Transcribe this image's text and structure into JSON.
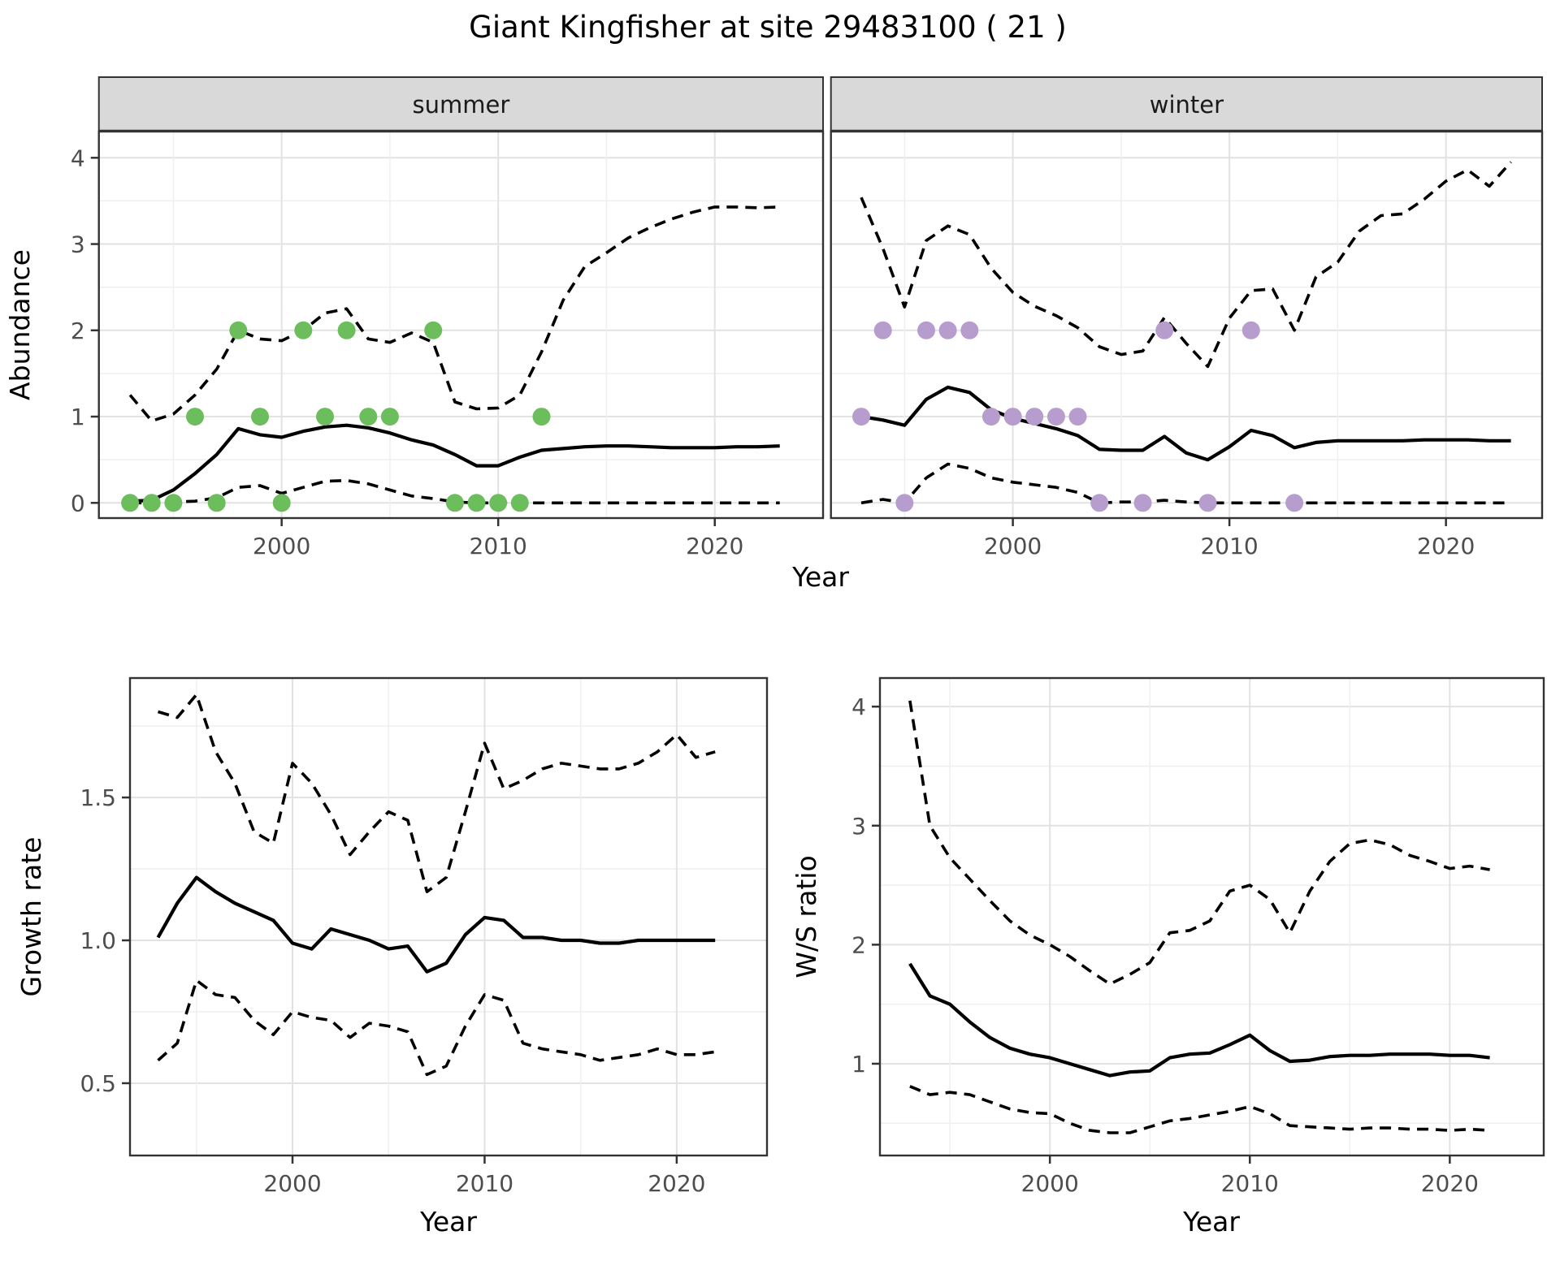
{
  "title": "Giant Kingfisher at site 29483100 ( 21 )",
  "theme": {
    "summer_dot_color": "#6cbe5d",
    "winter_dot_color": "#b79dce",
    "line_color": "#000000",
    "grid_major_color": "#e2e2e2",
    "grid_minor_color": "#efefef",
    "strip_bg_color": "#d9d9d9",
    "panel_border_color": "#333333",
    "tick_label_color": "#4d4d4d"
  },
  "chart_data": [
    {
      "id": "abundance-summer",
      "type": "line",
      "facet_label": "summer",
      "xlabel": "Year",
      "ylabel": "Abundance",
      "x_ticks": [
        2000,
        2010,
        2020
      ],
      "y_ticks": [
        0,
        1,
        2,
        3,
        4
      ],
      "xlim": [
        1991.56,
        2025.0
      ],
      "ylim": [
        -0.176,
        4.304
      ],
      "grid": true,
      "legend": "none",
      "x": [
        1993,
        1994,
        1995,
        1996,
        1997,
        1998,
        1999,
        2000,
        2001,
        2002,
        2003,
        2004,
        2005,
        2006,
        2007,
        2008,
        2009,
        2010,
        2011,
        2012,
        2013,
        2014,
        2015,
        2016,
        2017,
        2018,
        2019,
        2020,
        2021,
        2022,
        2023
      ],
      "series": [
        {
          "name": "modelled_mean",
          "style": "solid",
          "values": [
            0.02,
            0.03,
            0.15,
            0.34,
            0.56,
            0.86,
            0.79,
            0.76,
            0.83,
            0.88,
            0.9,
            0.87,
            0.81,
            0.73,
            0.67,
            0.56,
            0.43,
            0.43,
            0.53,
            0.61,
            0.63,
            0.65,
            0.66,
            0.66,
            0.65,
            0.64,
            0.64,
            0.64,
            0.65,
            0.65,
            0.66
          ]
        },
        {
          "name": "upper_ci",
          "style": "dashed",
          "values": [
            1.25,
            0.95,
            1.03,
            1.25,
            1.55,
            2.0,
            1.9,
            1.88,
            2.0,
            2.2,
            2.25,
            1.9,
            1.86,
            1.97,
            1.86,
            1.17,
            1.09,
            1.1,
            1.25,
            1.75,
            2.35,
            2.74,
            2.9,
            3.07,
            3.19,
            3.29,
            3.37,
            3.43,
            3.43,
            3.42,
            3.43
          ]
        },
        {
          "name": "lower_ci",
          "style": "dashed",
          "values": [
            0.0,
            0.0,
            0.01,
            0.02,
            0.06,
            0.18,
            0.2,
            0.11,
            0.18,
            0.25,
            0.26,
            0.22,
            0.15,
            0.08,
            0.05,
            0.01,
            0.0,
            0.0,
            0.0,
            0.0,
            0.0,
            0.0,
            0.0,
            0.0,
            0.0,
            0.0,
            0.0,
            0.0,
            0.0,
            0.0,
            0.0
          ]
        }
      ],
      "points": {
        "name": "observed_counts",
        "color": "#6cbe5d",
        "data": [
          [
            1993,
            0
          ],
          [
            1994,
            0
          ],
          [
            1995,
            0
          ],
          [
            1996,
            1
          ],
          [
            1997,
            0
          ],
          [
            1998,
            2
          ],
          [
            1999,
            1
          ],
          [
            2000,
            0
          ],
          [
            2001,
            2
          ],
          [
            2002,
            1
          ],
          [
            2003,
            2
          ],
          [
            2004,
            1
          ],
          [
            2005,
            1
          ],
          [
            2007,
            2
          ],
          [
            2008,
            0
          ],
          [
            2009,
            0
          ],
          [
            2010,
            0
          ],
          [
            2011,
            0
          ],
          [
            2012,
            1
          ]
        ]
      }
    },
    {
      "id": "abundance-winter",
      "type": "line",
      "facet_label": "winter",
      "xlabel": "Year",
      "ylabel": "Abundance",
      "x_ticks": [
        2000,
        2010,
        2020
      ],
      "y_ticks": [
        0,
        1,
        2,
        3,
        4
      ],
      "xlim": [
        1991.6,
        2024.44
      ],
      "ylim": [
        -0.176,
        4.304
      ],
      "grid": true,
      "legend": "none",
      "x": [
        1993,
        1994,
        1995,
        1996,
        1997,
        1998,
        1999,
        2000,
        2001,
        2002,
        2003,
        2004,
        2005,
        2006,
        2007,
        2008,
        2009,
        2010,
        2011,
        2012,
        2013,
        2014,
        2015,
        2016,
        2017,
        2018,
        2019,
        2020,
        2021,
        2022,
        2023
      ],
      "series": [
        {
          "name": "modelled_mean",
          "style": "solid",
          "values": [
            1.0,
            0.96,
            0.9,
            1.2,
            1.34,
            1.28,
            1.08,
            0.98,
            0.92,
            0.86,
            0.78,
            0.62,
            0.61,
            0.61,
            0.77,
            0.58,
            0.5,
            0.65,
            0.84,
            0.78,
            0.64,
            0.7,
            0.72,
            0.72,
            0.72,
            0.72,
            0.73,
            0.73,
            0.73,
            0.72,
            0.72
          ]
        },
        {
          "name": "upper_ci",
          "style": "dashed",
          "values": [
            3.54,
            2.95,
            2.27,
            3.04,
            3.21,
            3.11,
            2.72,
            2.44,
            2.28,
            2.17,
            2.03,
            1.81,
            1.72,
            1.76,
            2.15,
            1.85,
            1.58,
            2.14,
            2.46,
            2.48,
            2.0,
            2.62,
            2.79,
            3.15,
            3.33,
            3.35,
            3.52,
            3.73,
            3.86,
            3.67,
            3.95
          ]
        },
        {
          "name": "lower_ci",
          "style": "dashed",
          "values": [
            0.0,
            0.04,
            0.0,
            0.29,
            0.45,
            0.4,
            0.29,
            0.24,
            0.21,
            0.18,
            0.12,
            0.0,
            0.01,
            0.01,
            0.03,
            0.01,
            0.0,
            0.0,
            0.0,
            0.0,
            0.0,
            0.0,
            0.0,
            0.0,
            0.0,
            0.0,
            0.0,
            0.0,
            0.0,
            0.0,
            0.0
          ]
        }
      ],
      "points": {
        "name": "observed_counts",
        "color": "#b79dce",
        "data": [
          [
            1993,
            1
          ],
          [
            1994,
            2
          ],
          [
            1995,
            0
          ],
          [
            1996,
            2
          ],
          [
            1997,
            2
          ],
          [
            1998,
            2
          ],
          [
            1999,
            1
          ],
          [
            2000,
            1
          ],
          [
            2001,
            1
          ],
          [
            2002,
            1
          ],
          [
            2003,
            1
          ],
          [
            2004,
            0
          ],
          [
            2006,
            0
          ],
          [
            2007,
            2
          ],
          [
            2009,
            0
          ],
          [
            2011,
            2
          ],
          [
            2013,
            0
          ]
        ]
      }
    },
    {
      "id": "growth-rate",
      "type": "line",
      "facet_label": null,
      "xlabel": "Year",
      "ylabel": "Growth rate",
      "x_ticks": [
        2000,
        2010,
        2020
      ],
      "y_ticks": [
        0.5,
        1.0,
        1.5
      ],
      "xlim": [
        1991.54,
        2024.7
      ],
      "ylim": [
        0.247,
        1.918
      ],
      "grid": true,
      "legend": "none",
      "x": [
        1993,
        1994,
        1995,
        1996,
        1997,
        1998,
        1999,
        2000,
        2001,
        2002,
        2003,
        2004,
        2005,
        2006,
        2007,
        2008,
        2009,
        2010,
        2011,
        2012,
        2013,
        2014,
        2015,
        2016,
        2017,
        2018,
        2019,
        2020,
        2021,
        2022
      ],
      "series": [
        {
          "name": "modelled_mean",
          "style": "solid",
          "values": [
            1.01,
            1.13,
            1.22,
            1.17,
            1.13,
            1.1,
            1.07,
            0.99,
            0.97,
            1.04,
            1.02,
            1.0,
            0.97,
            0.98,
            0.89,
            0.92,
            1.02,
            1.08,
            1.07,
            1.01,
            1.01,
            1.0,
            1.0,
            0.99,
            0.99,
            1.0,
            1.0,
            1.0,
            1.0,
            1.0
          ]
        },
        {
          "name": "upper_ci",
          "style": "dashed",
          "values": [
            1.8,
            1.78,
            1.86,
            1.66,
            1.55,
            1.38,
            1.34,
            1.62,
            1.55,
            1.44,
            1.3,
            1.38,
            1.45,
            1.42,
            1.17,
            1.22,
            1.45,
            1.69,
            1.53,
            1.56,
            1.6,
            1.62,
            1.61,
            1.6,
            1.6,
            1.62,
            1.66,
            1.72,
            1.64,
            1.66
          ]
        },
        {
          "name": "lower_ci",
          "style": "dashed",
          "values": [
            0.58,
            0.64,
            0.86,
            0.81,
            0.8,
            0.72,
            0.67,
            0.75,
            0.73,
            0.72,
            0.66,
            0.71,
            0.7,
            0.68,
            0.53,
            0.56,
            0.7,
            0.81,
            0.79,
            0.64,
            0.62,
            0.61,
            0.6,
            0.58,
            0.59,
            0.6,
            0.62,
            0.6,
            0.6,
            0.61
          ]
        }
      ],
      "points": null
    },
    {
      "id": "ws-ratio",
      "type": "line",
      "facet_label": null,
      "xlabel": "Year",
      "ylabel": "W/S ratio",
      "x_ticks": [
        2000,
        2010,
        2020
      ],
      "y_ticks": [
        1,
        2,
        3,
        4
      ],
      "xlim": [
        1991.5,
        2024.7
      ],
      "ylim": [
        0.229,
        4.24
      ],
      "grid": true,
      "legend": "none",
      "x": [
        1993,
        1994,
        1995,
        1996,
        1997,
        1998,
        1999,
        2000,
        2001,
        2002,
        2003,
        2004,
        2005,
        2006,
        2007,
        2008,
        2009,
        2010,
        2011,
        2012,
        2013,
        2014,
        2015,
        2016,
        2017,
        2018,
        2019,
        2020,
        2021,
        2022
      ],
      "series": [
        {
          "name": "modelled_mean",
          "style": "solid",
          "values": [
            1.84,
            1.57,
            1.5,
            1.35,
            1.22,
            1.13,
            1.08,
            1.05,
            1.0,
            0.95,
            0.9,
            0.93,
            0.94,
            1.05,
            1.08,
            1.09,
            1.16,
            1.24,
            1.11,
            1.02,
            1.03,
            1.06,
            1.07,
            1.07,
            1.08,
            1.08,
            1.08,
            1.07,
            1.07,
            1.05
          ]
        },
        {
          "name": "upper_ci",
          "style": "dashed",
          "values": [
            4.05,
            3.0,
            2.73,
            2.55,
            2.37,
            2.2,
            2.08,
            2.0,
            1.9,
            1.78,
            1.67,
            1.75,
            1.85,
            2.1,
            2.12,
            2.2,
            2.45,
            2.5,
            2.38,
            2.1,
            2.45,
            2.7,
            2.85,
            2.88,
            2.84,
            2.75,
            2.7,
            2.64,
            2.66,
            2.63
          ]
        },
        {
          "name": "lower_ci",
          "style": "dashed",
          "values": [
            0.81,
            0.74,
            0.76,
            0.74,
            0.68,
            0.62,
            0.59,
            0.58,
            0.5,
            0.44,
            0.42,
            0.42,
            0.47,
            0.52,
            0.54,
            0.57,
            0.6,
            0.64,
            0.58,
            0.48,
            0.47,
            0.46,
            0.45,
            0.46,
            0.46,
            0.45,
            0.45,
            0.44,
            0.45,
            0.44
          ]
        }
      ],
      "points": null
    }
  ]
}
